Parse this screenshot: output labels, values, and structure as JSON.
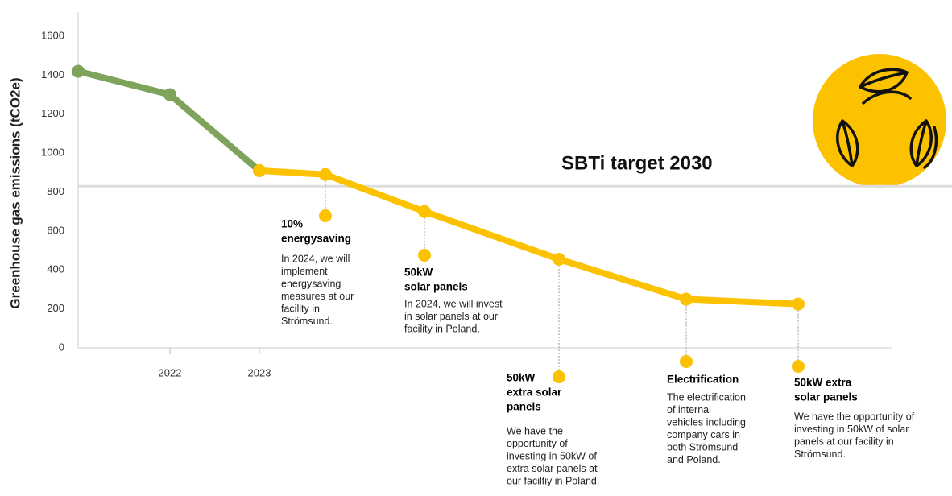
{
  "chart_data": {
    "type": "line",
    "y_label": "Greenhouse gas emissions (tCO2e)",
    "categories": [
      null,
      "2022",
      "2023",
      null,
      null,
      null,
      null,
      null
    ],
    "series": [
      {
        "color": "#7fa35a",
        "values": [
          1420,
          1300,
          910,
          null,
          null,
          null,
          null,
          null
        ]
      },
      {
        "color": "#fcc200",
        "values": [
          null,
          null,
          910,
          890,
          700,
          455,
          250,
          225
        ]
      }
    ],
    "ylim": [
      0,
      1600
    ],
    "yticks": [
      0,
      200,
      400,
      600,
      800,
      1000,
      1200,
      1400,
      1600
    ],
    "target": {
      "label": "SBTi target 2030",
      "value": 830
    },
    "annotations": [
      {
        "point": 3,
        "title": [
          "10%",
          "energysaving"
        ],
        "text": [
          "In 2024, we will",
          "implement",
          "energysaving",
          "measures at our",
          "facility in",
          "Strömsund."
        ]
      },
      {
        "point": 4,
        "title": [
          "50kW",
          "solar panels"
        ],
        "text": [
          "In 2024, we will invest",
          "in solar panels at our",
          "facility in Poland."
        ]
      },
      {
        "point": 5,
        "title": [
          "50kW",
          "extra solar",
          "panels"
        ],
        "text": [
          "We have the",
          "opportunity of",
          "investing in 50kW of",
          "extra solar panels at",
          "our faciltiy in Poland."
        ]
      },
      {
        "point": 6,
        "title": [
          "Electrification"
        ],
        "text": [
          "The electrification",
          "of internal",
          "vehicles including",
          "company cars in",
          "both Strömsund",
          "and Poland."
        ]
      },
      {
        "point": 7,
        "title": [
          "50kW extra",
          "solar panels"
        ],
        "text": [
          "We have the opportunity of",
          "investing in 50kW of solar",
          "panels at our facility in",
          "Strömsund."
        ]
      }
    ]
  }
}
